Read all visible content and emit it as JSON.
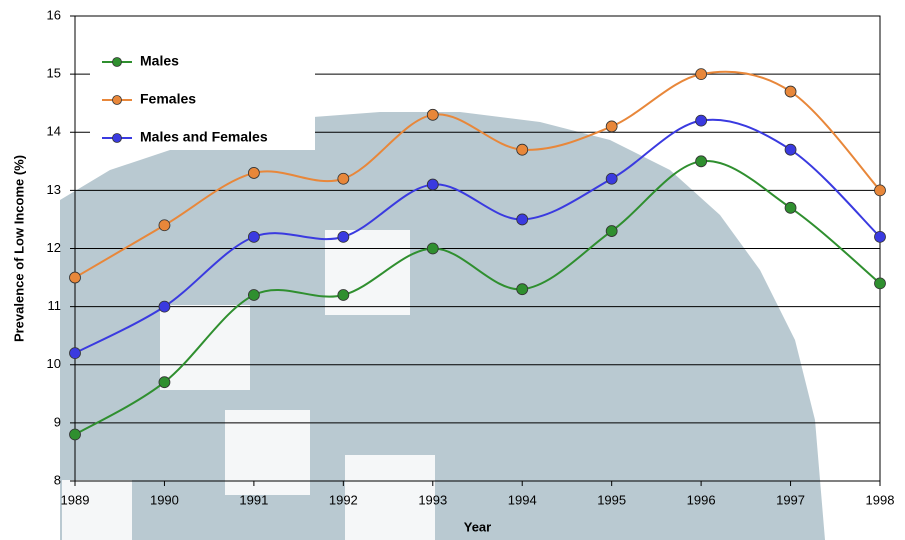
{
  "chart_data": {
    "type": "line",
    "x_label": "Year",
    "y_label": "Prevalence of Low Income (%)",
    "x": [
      1989,
      1990,
      1991,
      1992,
      1993,
      1994,
      1995,
      1996,
      1997,
      1998
    ],
    "series": [
      {
        "name": "Males",
        "color": "#2f8f2f",
        "values": [
          8.8,
          9.7,
          11.2,
          11.2,
          12.0,
          11.3,
          12.3,
          13.5,
          12.7,
          11.4
        ]
      },
      {
        "name": "Females",
        "color": "#e8873a",
        "values": [
          11.5,
          12.4,
          13.3,
          13.2,
          14.3,
          13.7,
          14.1,
          15.0,
          14.7,
          13.0
        ]
      },
      {
        "name": "Males and Females",
        "color": "#3a3ae0",
        "values": [
          10.2,
          11.0,
          12.2,
          12.2,
          13.1,
          12.5,
          13.2,
          14.2,
          13.7,
          12.2
        ]
      }
    ],
    "xlim": [
      1989,
      1998
    ],
    "xticks": [
      1989,
      1990,
      1991,
      1992,
      1993,
      1994,
      1995,
      1996,
      1997,
      1998
    ],
    "ylim": [
      8,
      16
    ],
    "yticks": [
      8,
      9,
      10,
      11,
      12,
      13,
      14,
      15,
      16
    ],
    "grid": true,
    "legend": "upper left",
    "smooth": true
  }
}
